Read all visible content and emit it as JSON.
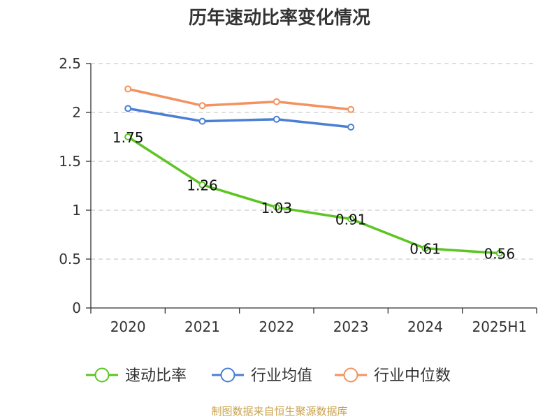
{
  "chart_data": {
    "type": "line",
    "title": "历年速动比率变化情况",
    "xlabel": "",
    "ylabel": "",
    "categories": [
      "2020",
      "2021",
      "2022",
      "2023",
      "2024",
      "2025H1"
    ],
    "ylim": [
      0,
      2.5
    ],
    "yticks": [
      0,
      0.5,
      1,
      1.5,
      2,
      2.5
    ],
    "ytick_labels": [
      "0",
      "0.5",
      "1",
      "1.5",
      "2",
      "2.5"
    ],
    "grid": true,
    "legend_position": "bottom",
    "series": [
      {
        "name": "速动比率",
        "color": "#5cc522",
        "values": [
          1.75,
          1.26,
          1.03,
          0.91,
          0.61,
          0.56
        ],
        "labels": [
          "1.75",
          "1.26",
          "1.03",
          "0.91",
          "0.61",
          "0.56"
        ],
        "show_labels": true
      },
      {
        "name": "行业均值",
        "color": "#4a7fd6",
        "values": [
          2.04,
          1.91,
          1.93,
          1.85,
          null,
          null
        ],
        "show_labels": false
      },
      {
        "name": "行业中位数",
        "color": "#f4925f",
        "values": [
          2.24,
          2.07,
          2.11,
          2.03,
          null,
          null
        ],
        "show_labels": false
      }
    ]
  },
  "source_text": "制图数据来自恒生聚源数据库"
}
